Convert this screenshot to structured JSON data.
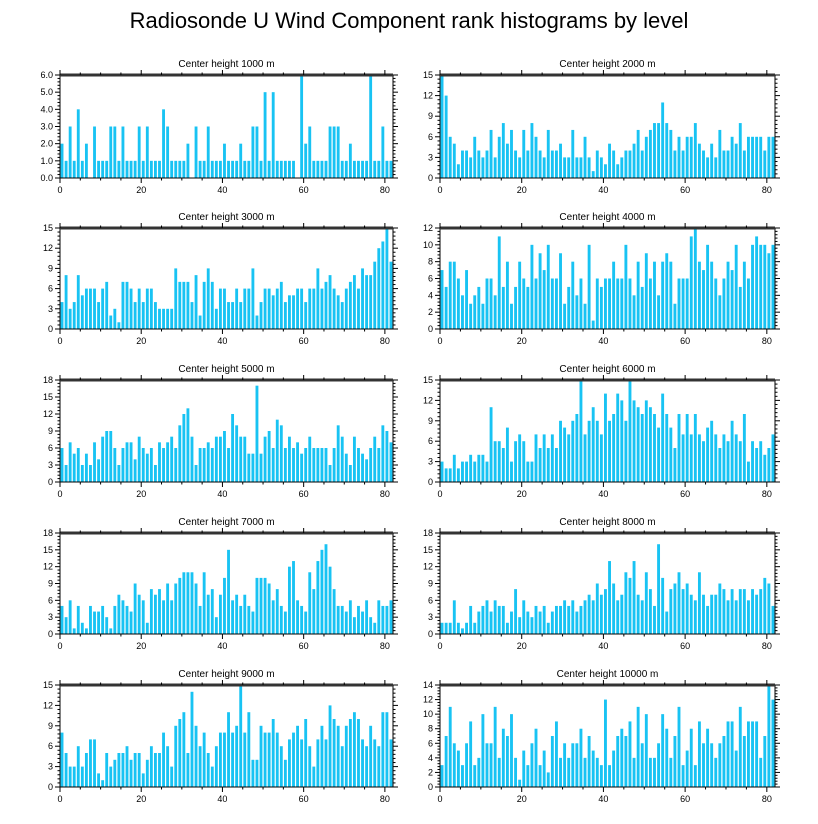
{
  "title": "Radiosonde U Wind Component rank histograms by level",
  "colors": {
    "bar": "#18c3f3",
    "bar_edge": "#0aa8d8",
    "axis": "#000000"
  },
  "chart_data": [
    {
      "type": "bar",
      "title": "Center height 1000 m",
      "xlim": [
        0,
        82
      ],
      "ylim": [
        0,
        6
      ],
      "xticks": [
        0,
        20,
        40,
        60,
        80
      ],
      "yticks": [
        0,
        1,
        2,
        3,
        4,
        5,
        6
      ],
      "ytick_labels": [
        "0.0",
        "1.0",
        "2.0",
        "3.0",
        "4.0",
        "5.0",
        "6.0"
      ],
      "values": [
        2,
        1,
        3,
        1,
        4,
        1,
        2,
        0,
        3,
        1,
        1,
        1,
        3,
        3,
        1,
        3,
        1,
        1,
        1,
        3,
        1,
        3,
        1,
        1,
        1,
        4,
        3,
        1,
        1,
        1,
        1,
        2,
        0,
        3,
        1,
        1,
        3,
        1,
        1,
        1,
        2,
        1,
        1,
        1,
        2,
        1,
        1,
        3,
        3,
        1,
        5,
        1,
        5,
        1,
        1,
        1,
        1,
        1,
        0,
        6,
        2,
        3,
        1,
        1,
        1,
        1,
        3,
        3,
        3,
        1,
        1,
        2,
        1,
        1,
        1,
        1,
        6,
        1,
        1,
        3,
        1,
        1
      ]
    },
    {
      "type": "bar",
      "title": "Center height 2000 m",
      "xlim": [
        0,
        82
      ],
      "ylim": [
        0,
        15
      ],
      "xticks": [
        0,
        20,
        40,
        60,
        80
      ],
      "yticks": [
        0,
        3,
        6,
        9,
        12,
        15
      ],
      "ytick_labels": [
        "0",
        "3",
        "6",
        "9",
        "12",
        "15"
      ],
      "values": [
        15,
        12,
        6,
        5,
        2,
        4,
        4,
        3,
        6,
        4,
        3,
        4,
        7,
        3,
        6,
        8,
        5,
        7,
        4,
        3,
        7,
        4,
        8,
        6,
        4,
        3,
        7,
        4,
        4,
        5,
        3,
        3,
        7,
        3,
        3,
        6,
        3,
        1,
        4,
        3,
        2,
        5,
        4,
        2,
        3,
        4,
        4,
        5,
        7,
        4,
        6,
        7,
        8,
        8,
        11,
        8,
        7,
        4,
        6,
        4,
        6,
        6,
        8,
        5,
        4,
        3,
        5,
        3,
        7,
        4,
        4,
        6,
        5,
        8,
        4,
        6,
        6,
        6,
        6,
        4,
        6,
        6
      ]
    },
    {
      "type": "bar",
      "title": "Center height 3000 m",
      "xlim": [
        0,
        82
      ],
      "ylim": [
        0,
        15
      ],
      "xticks": [
        0,
        20,
        40,
        60,
        80
      ],
      "yticks": [
        0,
        3,
        6,
        9,
        12,
        15
      ],
      "ytick_labels": [
        "0",
        "3",
        "6",
        "9",
        "12",
        "15"
      ],
      "values": [
        4,
        8,
        3,
        4,
        8,
        5,
        6,
        6,
        6,
        4,
        6,
        7,
        2,
        3,
        1,
        7,
        7,
        6,
        4,
        6,
        4,
        6,
        6,
        4,
        3,
        3,
        3,
        3,
        9,
        7,
        7,
        7,
        4,
        8,
        2,
        7,
        9,
        7,
        3,
        6,
        6,
        4,
        4,
        6,
        4,
        6,
        6,
        9,
        2,
        4,
        6,
        6,
        5,
        6,
        7,
        4,
        5,
        5,
        6,
        6,
        4,
        6,
        6,
        9,
        6,
        7,
        8,
        6,
        5,
        4,
        6,
        7,
        8,
        6,
        9,
        8,
        8,
        10,
        12,
        13,
        15,
        10
      ]
    },
    {
      "type": "bar",
      "title": "Center height 4000 m",
      "xlim": [
        0,
        82
      ],
      "ylim": [
        0,
        12
      ],
      "xticks": [
        0,
        20,
        40,
        60,
        80
      ],
      "yticks": [
        0,
        2,
        4,
        6,
        8,
        10,
        12
      ],
      "ytick_labels": [
        "0",
        "2",
        "4",
        "6",
        "8",
        "10",
        "12"
      ],
      "values": [
        7,
        5,
        8,
        8,
        6,
        4,
        7,
        3,
        4,
        5,
        3,
        6,
        6,
        4,
        11,
        5,
        8,
        3,
        5,
        8,
        6,
        5,
        10,
        6,
        9,
        7,
        10,
        6,
        6,
        9,
        3,
        5,
        8,
        4,
        6,
        3,
        10,
        1,
        6,
        5,
        6,
        6,
        8,
        6,
        6,
        10,
        6,
        4,
        8,
        5,
        9,
        6,
        8,
        4,
        8,
        9,
        8,
        3,
        6,
        6,
        6,
        11,
        12,
        8,
        7,
        10,
        8,
        6,
        4,
        6,
        8,
        7,
        10,
        5,
        8,
        6,
        10,
        11,
        10,
        10,
        9,
        10
      ]
    },
    {
      "type": "bar",
      "title": "Center height 5000 m",
      "xlim": [
        0,
        82
      ],
      "ylim": [
        0,
        18
      ],
      "xticks": [
        0,
        20,
        40,
        60,
        80
      ],
      "yticks": [
        0,
        3,
        6,
        9,
        12,
        15,
        18
      ],
      "ytick_labels": [
        "0",
        "3",
        "6",
        "9",
        "12",
        "15",
        "18"
      ],
      "values": [
        6,
        3,
        7,
        5,
        6,
        3,
        5,
        3,
        7,
        4,
        8,
        9,
        9,
        6,
        3,
        6,
        7,
        7,
        4,
        8,
        6,
        5,
        6,
        3,
        7,
        6,
        7,
        8,
        6,
        10,
        12,
        13,
        8,
        3,
        6,
        6,
        7,
        6,
        8,
        8,
        9,
        6,
        12,
        10,
        8,
        8,
        5,
        5,
        17,
        5,
        8,
        9,
        6,
        11,
        10,
        6,
        8,
        6,
        7,
        5,
        6,
        8,
        6,
        6,
        6,
        6,
        3,
        6,
        10,
        8,
        5,
        3,
        8,
        6,
        5,
        4,
        6,
        8,
        6,
        10,
        9,
        7
      ]
    },
    {
      "type": "bar",
      "title": "Center height 6000 m",
      "xlim": [
        0,
        82
      ],
      "ylim": [
        0,
        15
      ],
      "xticks": [
        0,
        20,
        40,
        60,
        80
      ],
      "yticks": [
        0,
        3,
        6,
        9,
        12,
        15
      ],
      "ytick_labels": [
        "0",
        "3",
        "6",
        "9",
        "12",
        "15"
      ],
      "values": [
        3,
        2,
        2,
        4,
        2,
        3,
        3,
        4,
        3,
        4,
        4,
        3,
        11,
        6,
        6,
        5,
        8,
        3,
        6,
        7,
        6,
        3,
        3,
        7,
        5,
        7,
        5,
        7,
        5,
        9,
        8,
        7,
        9,
        10,
        15,
        7,
        9,
        11,
        9,
        7,
        13,
        9,
        10,
        13,
        12,
        9,
        15,
        12,
        11,
        10,
        12,
        11,
        10,
        8,
        13,
        10,
        8,
        5,
        10,
        7,
        10,
        7,
        10,
        7,
        6,
        8,
        9,
        7,
        5,
        7,
        6,
        9,
        7,
        6,
        10,
        3,
        6,
        5,
        6,
        4,
        5,
        7
      ]
    },
    {
      "type": "bar",
      "title": "Center height 7000 m",
      "xlim": [
        0,
        82
      ],
      "ylim": [
        0,
        18
      ],
      "xticks": [
        0,
        20,
        40,
        60,
        80
      ],
      "yticks": [
        0,
        3,
        6,
        9,
        12,
        15,
        18
      ],
      "ytick_labels": [
        "0",
        "3",
        "6",
        "9",
        "12",
        "15",
        "18"
      ],
      "values": [
        5,
        3,
        6,
        1,
        5,
        2,
        1,
        5,
        4,
        4,
        5,
        3,
        1,
        5,
        7,
        6,
        5,
        4,
        9,
        7,
        6,
        2,
        8,
        7,
        8,
        6,
        9,
        6,
        9,
        10,
        11,
        11,
        11,
        9,
        5,
        11,
        7,
        8,
        3,
        7,
        10,
        15,
        6,
        7,
        5,
        7,
        5,
        4,
        10,
        10,
        10,
        9,
        6,
        8,
        5,
        4,
        12,
        13,
        6,
        5,
        4,
        11,
        8,
        13,
        15,
        16,
        12,
        8,
        5,
        5,
        4,
        6,
        3,
        5,
        4,
        6,
        3,
        2,
        6,
        5,
        5,
        6
      ]
    },
    {
      "type": "bar",
      "title": "Center height 8000 m",
      "xlim": [
        0,
        82
      ],
      "ylim": [
        0,
        18
      ],
      "xticks": [
        0,
        20,
        40,
        60,
        80
      ],
      "yticks": [
        0,
        3,
        6,
        9,
        12,
        15,
        18
      ],
      "ytick_labels": [
        "0",
        "3",
        "6",
        "9",
        "12",
        "15",
        "18"
      ],
      "values": [
        2,
        2,
        2,
        6,
        2,
        1,
        2,
        5,
        2,
        4,
        5,
        6,
        4,
        6,
        5,
        5,
        2,
        4,
        8,
        3,
        6,
        4,
        3,
        5,
        4,
        5,
        2,
        4,
        5,
        5,
        6,
        5,
        6,
        4,
        5,
        6,
        7,
        6,
        9,
        7,
        8,
        13,
        9,
        6,
        7,
        11,
        10,
        13,
        7,
        6,
        11,
        8,
        5,
        16,
        10,
        4,
        8,
        9,
        11,
        8,
        9,
        7,
        6,
        11,
        7,
        5,
        7,
        7,
        9,
        8,
        6,
        8,
        6,
        8,
        8,
        6,
        8,
        7,
        8,
        10,
        9,
        5
      ]
    },
    {
      "type": "bar",
      "title": "Center height 9000 m",
      "xlim": [
        0,
        82
      ],
      "ylim": [
        0,
        15
      ],
      "xticks": [
        0,
        20,
        40,
        60,
        80
      ],
      "yticks": [
        0,
        3,
        6,
        9,
        12,
        15
      ],
      "ytick_labels": [
        "0",
        "3",
        "6",
        "9",
        "12",
        "15"
      ],
      "values": [
        8,
        5,
        3,
        3,
        6,
        3,
        5,
        7,
        7,
        2,
        1,
        5,
        3,
        4,
        5,
        5,
        6,
        4,
        5,
        5,
        2,
        4,
        6,
        5,
        5,
        8,
        6,
        3,
        9,
        10,
        11,
        5,
        14,
        9,
        6,
        8,
        5,
        3,
        6,
        8,
        8,
        11,
        8,
        9,
        15,
        8,
        11,
        4,
        4,
        9,
        8,
        8,
        10,
        8,
        6,
        4,
        7,
        8,
        9,
        7,
        10,
        6,
        3,
        7,
        9,
        7,
        12,
        10,
        9,
        6,
        9,
        10,
        11,
        10,
        7,
        6,
        9,
        7,
        6,
        11,
        11,
        7
      ]
    },
    {
      "type": "bar",
      "title": "Center height 10000 m",
      "xlim": [
        0,
        82
      ],
      "ylim": [
        0,
        14
      ],
      "xticks": [
        0,
        20,
        40,
        60,
        80
      ],
      "yticks": [
        0,
        2,
        4,
        6,
        8,
        10,
        12,
        14
      ],
      "ytick_labels": [
        "0",
        "2",
        "4",
        "6",
        "8",
        "10",
        "12",
        "14"
      ],
      "values": [
        3,
        7,
        11,
        6,
        5,
        3,
        6,
        9,
        3,
        4,
        10,
        6,
        6,
        11,
        4,
        8,
        7,
        10,
        4,
        1,
        5,
        3,
        6,
        8,
        3,
        5,
        2,
        7,
        9,
        4,
        6,
        4,
        6,
        6,
        8,
        4,
        7,
        5,
        4,
        3,
        12,
        3,
        5,
        7,
        8,
        7,
        9,
        4,
        11,
        6,
        10,
        4,
        4,
        6,
        10,
        8,
        4,
        7,
        11,
        3,
        5,
        8,
        3,
        9,
        6,
        8,
        6,
        4,
        6,
        7,
        9,
        9,
        5,
        11,
        7,
        9,
        9,
        9,
        4,
        7,
        14,
        12
      ]
    }
  ]
}
